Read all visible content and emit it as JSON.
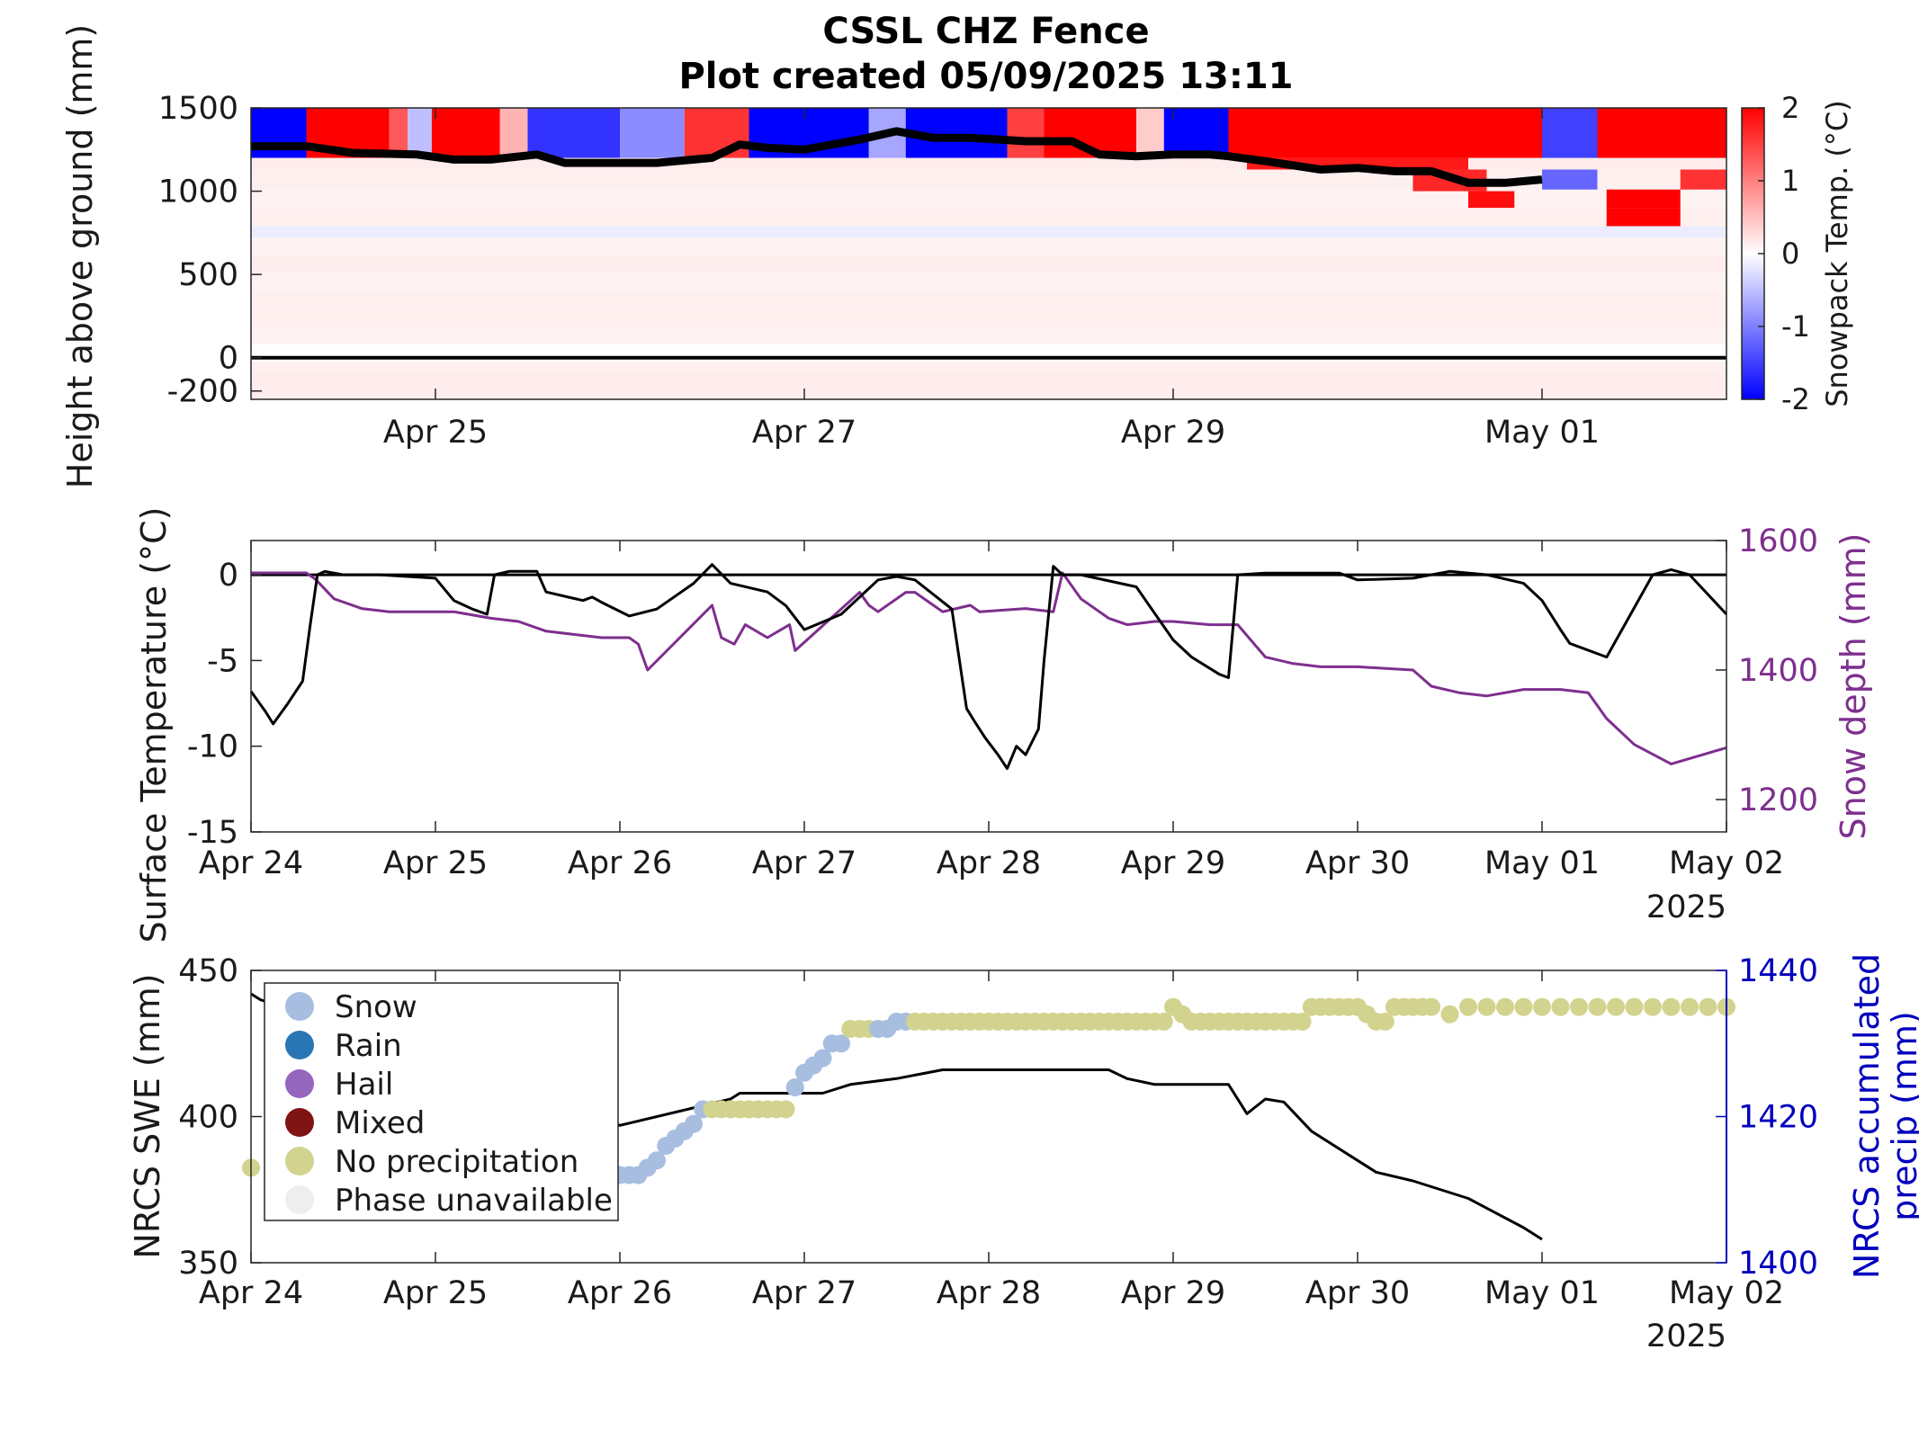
{
  "title": {
    "line1": "CSSL CHZ Fence",
    "line2": "Plot created 05/09/2025 13:11"
  },
  "chart_data": [
    {
      "type": "heatmap",
      "id": "snowpack-temperature",
      "xlim": [
        "2025-04-24T00:00",
        "2025-05-02T00:00"
      ],
      "x_ticks": [
        "Apr 25",
        "Apr 27",
        "Apr 29",
        "May 01"
      ],
      "ylabel": "Height above ground (mm)",
      "ylim": [
        -250,
        1500
      ],
      "y_ticks": [
        "1500",
        "1000",
        "500",
        "0",
        "-200"
      ],
      "colorbar": {
        "label": "Snowpack Temp. (°C)",
        "range": [
          -2,
          2
        ],
        "ticks": [
          "2",
          "1",
          "0",
          "-1",
          "-2"
        ],
        "colors": [
          "#0000ff",
          "#ffffff",
          "#ff0000"
        ]
      },
      "top_band_cells": [
        {
          "x0": 0.0,
          "x1": 0.3,
          "value": -2
        },
        {
          "x0": 0.3,
          "x1": 0.75,
          "value": 2
        },
        {
          "x0": 0.75,
          "x1": 0.85,
          "value": 1.3
        },
        {
          "x0": 0.85,
          "x1": 0.98,
          "value": -0.5
        },
        {
          "x0": 0.98,
          "x1": 1.35,
          "value": 2
        },
        {
          "x0": 1.35,
          "x1": 1.5,
          "value": 0.6
        },
        {
          "x0": 1.5,
          "x1": 2.0,
          "value": -1.6
        },
        {
          "x0": 2.0,
          "x1": 2.35,
          "value": -0.9
        },
        {
          "x0": 2.35,
          "x1": 2.7,
          "value": 1.6
        },
        {
          "x0": 2.7,
          "x1": 3.35,
          "value": -2
        },
        {
          "x0": 3.35,
          "x1": 3.55,
          "value": -0.7
        },
        {
          "x0": 3.55,
          "x1": 4.1,
          "value": -2
        },
        {
          "x0": 4.1,
          "x1": 4.3,
          "value": 1.5
        },
        {
          "x0": 4.3,
          "x1": 4.8,
          "value": 2
        },
        {
          "x0": 4.8,
          "x1": 4.95,
          "value": 0.4
        },
        {
          "x0": 4.95,
          "x1": 5.3,
          "value": -2
        },
        {
          "x0": 5.3,
          "x1": 7.0,
          "value": 2
        },
        {
          "x0": 7.0,
          "x1": 7.3,
          "value": -1.5
        },
        {
          "x0": 7.3,
          "x1": 8.0,
          "value": 2
        }
      ],
      "layers": [
        {
          "y0": 1130,
          "y1": 1200,
          "value": 0.15
        },
        {
          "y0": 1010,
          "y1": 1130,
          "value": 0.12
        },
        {
          "y0": 900,
          "y1": 1010,
          "value": 0.1
        },
        {
          "y0": 790,
          "y1": 900,
          "value": 0.12
        },
        {
          "y0": 720,
          "y1": 790,
          "value": -0.15
        },
        {
          "y0": 610,
          "y1": 720,
          "value": 0.1
        },
        {
          "y0": 520,
          "y1": 610,
          "value": 0.15
        },
        {
          "y0": 400,
          "y1": 520,
          "value": 0.1
        },
        {
          "y0": 300,
          "y1": 400,
          "value": 0.12
        },
        {
          "y0": 180,
          "y1": 300,
          "value": 0.12
        },
        {
          "y0": 80,
          "y1": 180,
          "value": 0.1
        },
        {
          "y0": -90,
          "y1": -20,
          "value": 0.12
        },
        {
          "y0": -250,
          "y1": -90,
          "value": 0.15
        }
      ],
      "melt_patches": [
        {
          "x0": 5.4,
          "x1": 6.6,
          "y0": 1130,
          "y1": 1200,
          "value": 1.8
        },
        {
          "x0": 6.3,
          "x1": 6.7,
          "y0": 1000,
          "y1": 1130,
          "value": 1.7
        },
        {
          "x0": 6.6,
          "x1": 6.85,
          "y0": 900,
          "y1": 1000,
          "value": 1.9
        },
        {
          "x0": 7.0,
          "x1": 7.3,
          "y0": 1010,
          "y1": 1130,
          "value": -1.2
        },
        {
          "x0": 7.35,
          "x1": 7.75,
          "y0": 900,
          "y1": 1010,
          "value": 2
        },
        {
          "x0": 7.35,
          "x1": 7.75,
          "y0": 790,
          "y1": 900,
          "value": 2
        },
        {
          "x0": 7.75,
          "x1": 8.0,
          "y0": 1010,
          "y1": 1130,
          "value": 1.6
        }
      ],
      "ground_line_mm": 0,
      "snow_depth_line": {
        "x": [
          0,
          0.3,
          0.55,
          0.9,
          1.1,
          1.3,
          1.55,
          1.7,
          2.0,
          2.2,
          2.5,
          2.65,
          2.8,
          3.0,
          3.3,
          3.5,
          3.7,
          3.9,
          4.2,
          4.45,
          4.6,
          4.8,
          5.0,
          5.2,
          5.3,
          5.5,
          5.8,
          6.0,
          6.2,
          6.4,
          6.6,
          6.8,
          7.0
        ],
        "y": [
          1270,
          1270,
          1230,
          1220,
          1190,
          1190,
          1220,
          1170,
          1170,
          1170,
          1200,
          1280,
          1260,
          1250,
          1310,
          1360,
          1320,
          1320,
          1300,
          1300,
          1220,
          1210,
          1220,
          1220,
          1210,
          1180,
          1130,
          1140,
          1120,
          1120,
          1050,
          1050,
          1070
        ]
      }
    },
    {
      "type": "line",
      "id": "surface-temp-and-snow-depth",
      "x_ticks": [
        "Apr 24",
        "Apr 25",
        "Apr 26",
        "Apr 27",
        "Apr 28",
        "Apr 29",
        "Apr 30",
        "May 01",
        "May 02"
      ],
      "x_year": "2025",
      "ylabel": "Surface Temperature (°C)",
      "ylim": [
        -15,
        2
      ],
      "y_ticks": [
        "0",
        "-5",
        "-10",
        "-15"
      ],
      "y2label": "Snow depth (mm)",
      "y2lim": [
        1150,
        1600
      ],
      "y2_ticks": [
        "1600",
        "1400",
        "1200"
      ],
      "colors": {
        "surface_temp": "#000000",
        "snow_depth": "#7e2f8e"
      },
      "series": [
        {
          "axis": "left",
          "x": [
            0,
            0.08,
            0.12,
            0.2,
            0.28,
            0.32,
            0.36,
            0.4,
            0.5,
            0.7,
            1.0,
            1.1,
            1.2,
            1.28,
            1.32,
            1.4,
            1.55,
            1.6,
            1.8,
            1.85,
            1.9,
            2.05,
            2.2,
            2.4,
            2.5,
            2.6,
            2.8,
            2.9,
            3.0,
            3.2,
            3.4,
            3.5,
            3.6,
            3.8,
            3.88,
            3.92,
            3.98,
            4.05,
            4.1,
            4.15,
            4.2,
            4.27,
            4.3,
            4.35,
            4.4,
            4.5,
            4.8,
            5.0,
            5.1,
            5.25,
            5.3,
            5.35,
            5.5,
            5.9,
            6.0,
            6.3,
            6.5,
            6.7,
            6.9,
            7.0,
            7.1,
            7.15,
            7.2,
            7.35,
            7.6,
            7.7,
            7.8,
            8.0
          ],
          "y": [
            -6.8,
            -8.0,
            -8.7,
            -7.5,
            -6.2,
            -3.0,
            0.0,
            0.2,
            0.0,
            0.0,
            -0.2,
            -1.5,
            -2.0,
            -2.3,
            0.0,
            0.2,
            0.2,
            -1.0,
            -1.5,
            -1.3,
            -1.6,
            -2.4,
            -2.0,
            -0.5,
            0.6,
            -0.5,
            -1.0,
            -1.8,
            -3.2,
            -2.3,
            -0.3,
            -0.1,
            -0.3,
            -2.0,
            -7.8,
            -8.5,
            -9.5,
            -10.5,
            -11.3,
            -10.0,
            -10.5,
            -9.0,
            -5.0,
            0.5,
            0.0,
            0.0,
            -0.7,
            -3.8,
            -4.8,
            -5.8,
            -6.0,
            0.0,
            0.1,
            0.1,
            -0.3,
            -0.2,
            0.2,
            0.0,
            -0.5,
            -1.5,
            -3.2,
            -4.0,
            -4.2,
            -4.8,
            0.0,
            0.3,
            0.0,
            -2.3
          ]
        },
        {
          "axis": "right",
          "x": [
            0,
            0.3,
            0.35,
            0.45,
            0.6,
            0.75,
            0.9,
            1.1,
            1.3,
            1.45,
            1.6,
            1.75,
            1.9,
            2.05,
            2.1,
            2.15,
            2.5,
            2.55,
            2.62,
            2.68,
            2.8,
            2.92,
            2.95,
            3.3,
            3.35,
            3.4,
            3.55,
            3.6,
            3.7,
            3.75,
            3.9,
            3.95,
            4.2,
            4.35,
            4.4,
            4.5,
            4.65,
            4.75,
            4.9,
            5.0,
            5.2,
            5.35,
            5.5,
            5.65,
            5.8,
            6.0,
            6.3,
            6.4,
            6.55,
            6.7,
            6.9,
            7.1,
            7.25,
            7.35,
            7.5,
            7.7,
            8.0
          ],
          "y": [
            1550,
            1550,
            1540,
            1510,
            1495,
            1490,
            1490,
            1490,
            1480,
            1475,
            1460,
            1455,
            1450,
            1450,
            1440,
            1400,
            1500,
            1450,
            1440,
            1470,
            1450,
            1470,
            1430,
            1520,
            1500,
            1490,
            1520,
            1520,
            1500,
            1490,
            1500,
            1490,
            1495,
            1490,
            1550,
            1510,
            1480,
            1470,
            1475,
            1475,
            1470,
            1470,
            1420,
            1410,
            1405,
            1405,
            1400,
            1375,
            1365,
            1360,
            1370,
            1370,
            1365,
            1325,
            1285,
            1255,
            1280
          ]
        }
      ]
    },
    {
      "type": "scatter",
      "id": "nrcs-swe-and-precip",
      "x_ticks": [
        "Apr 24",
        "Apr 25",
        "Apr 26",
        "Apr 27",
        "Apr 28",
        "Apr 29",
        "Apr 30",
        "May 01",
        "May 02"
      ],
      "x_year": "2025",
      "ylabel": "NRCS SWE (mm)",
      "ylim": [
        350,
        450
      ],
      "y_ticks": [
        "450",
        "400",
        "350"
      ],
      "y2label_line1": "NRCS accumulated",
      "y2label_line2": "precip (mm)",
      "y2lim": [
        1400,
        1440
      ],
      "y2_ticks": [
        "1440",
        "1420",
        "1400"
      ],
      "legend": [
        {
          "label": "Snow",
          "color": "#a7bee0"
        },
        {
          "label": "Rain",
          "color": "#2a75b3"
        },
        {
          "label": "Hail",
          "color": "#9467bd"
        },
        {
          "label": "Mixed",
          "color": "#7f1414"
        },
        {
          "label": "No precipitation",
          "color": "#d2d38e"
        },
        {
          "label": "Phase unavailable",
          "color": "#eeeeee"
        }
      ],
      "legend_position": "top-left",
      "colors": {
        "swe_line": "#000000",
        "axis2": "#0000bd"
      },
      "swe_series": {
        "x": [
          0,
          0.05,
          2.0,
          2.6,
          2.65,
          3.1,
          3.25,
          3.5,
          3.75,
          4.65,
          4.75,
          4.9,
          5.3,
          5.4,
          5.5,
          5.6,
          5.75,
          6.0,
          6.1,
          6.3,
          6.6,
          6.9,
          7.0
        ],
        "y": [
          442,
          440,
          397,
          406,
          408,
          408,
          411,
          413,
          416,
          416,
          413,
          411,
          411,
          401,
          406,
          405,
          395,
          385,
          381,
          378,
          372,
          362,
          358
        ]
      },
      "precip_points": {
        "x": [
          0,
          2.0,
          2.05,
          2.1,
          2.15,
          2.2,
          2.25,
          2.3,
          2.35,
          2.4,
          2.45,
          2.5,
          2.55,
          2.6,
          2.65,
          2.7,
          2.75,
          2.8,
          2.85,
          2.9,
          2.95,
          3.0,
          3.05,
          3.1,
          3.15,
          3.2,
          3.25,
          3.3,
          3.35,
          3.4,
          3.45,
          3.5,
          3.55,
          3.6,
          3.65,
          3.7,
          3.75,
          3.8,
          3.85,
          3.9,
          3.95,
          4.0,
          4.05,
          4.1,
          4.15,
          4.2,
          4.25,
          4.3,
          4.35,
          4.4,
          4.45,
          4.5,
          4.55,
          4.6,
          4.65,
          4.7,
          4.75,
          4.8,
          4.85,
          4.9,
          4.95,
          5.0,
          5.05,
          5.1,
          5.15,
          5.2,
          5.25,
          5.3,
          5.35,
          5.4,
          5.45,
          5.5,
          5.55,
          5.6,
          5.65,
          5.7,
          5.75,
          5.8,
          5.85,
          5.9,
          5.95,
          6.0,
          6.05,
          6.1,
          6.15,
          6.2,
          6.25,
          6.3,
          6.35,
          6.4,
          6.5,
          6.6,
          6.7,
          6.8,
          6.9,
          7.0,
          7.1,
          7.2,
          7.3,
          7.4,
          7.5,
          7.6,
          7.7,
          7.8,
          7.9,
          8.0
        ],
        "y": [
          1413,
          1412,
          1412,
          1412,
          1413,
          1414,
          1416,
          1417,
          1418,
          1419,
          1421,
          1421,
          1421,
          1421,
          1421,
          1421,
          1421,
          1421,
          1421,
          1421,
          1424,
          1426,
          1427,
          1428,
          1430,
          1430,
          1432,
          1432,
          1432,
          1432,
          1432,
          1433,
          1433,
          1433,
          1433,
          1433,
          1433,
          1433,
          1433,
          1433,
          1433,
          1433,
          1433,
          1433,
          1433,
          1433,
          1433,
          1433,
          1433,
          1433,
          1433,
          1433,
          1433,
          1433,
          1433,
          1433,
          1433,
          1433,
          1433,
          1433,
          1433,
          1435,
          1434,
          1433,
          1433,
          1433,
          1433,
          1433,
          1433,
          1433,
          1433,
          1433,
          1433,
          1433,
          1433,
          1433,
          1435,
          1435,
          1435,
          1435,
          1435,
          1435,
          1434,
          1433,
          1433,
          1435,
          1435,
          1435,
          1435,
          1435,
          1434,
          1435,
          1435,
          1435,
          1435,
          1435,
          1435,
          1435,
          1435,
          1435,
          1435,
          1435,
          1435,
          1435,
          1435,
          1435
        ],
        "phase": [
          "none",
          "snow",
          "snow",
          "snow",
          "snow",
          "snow",
          "snow",
          "snow",
          "snow",
          "snow",
          "snow",
          "none",
          "none",
          "none",
          "none",
          "none",
          "none",
          "none",
          "none",
          "none",
          "snow",
          "snow",
          "snow",
          "snow",
          "snow",
          "snow",
          "none",
          "none",
          "none",
          "snow",
          "snow",
          "snow",
          "snow",
          "none",
          "none",
          "none",
          "none",
          "none",
          "none",
          "none",
          "none",
          "none",
          "none",
          "none",
          "none",
          "none",
          "none",
          "none",
          "none",
          "none",
          "none",
          "none",
          "none",
          "none",
          "none",
          "none",
          "none",
          "none",
          "none",
          "none",
          "none",
          "none",
          "none",
          "none",
          "none",
          "none",
          "none",
          "none",
          "none",
          "none",
          "none",
          "none",
          "none",
          "none",
          "none",
          "none",
          "none",
          "none",
          "none",
          "none",
          "none",
          "none",
          "none",
          "none",
          "none",
          "none",
          "none",
          "none",
          "none",
          "none",
          "none",
          "none",
          "none",
          "none",
          "none",
          "none",
          "none",
          "none",
          "none",
          "none",
          "none",
          "none",
          "none",
          "none",
          "none",
          "none"
        ]
      }
    }
  ]
}
